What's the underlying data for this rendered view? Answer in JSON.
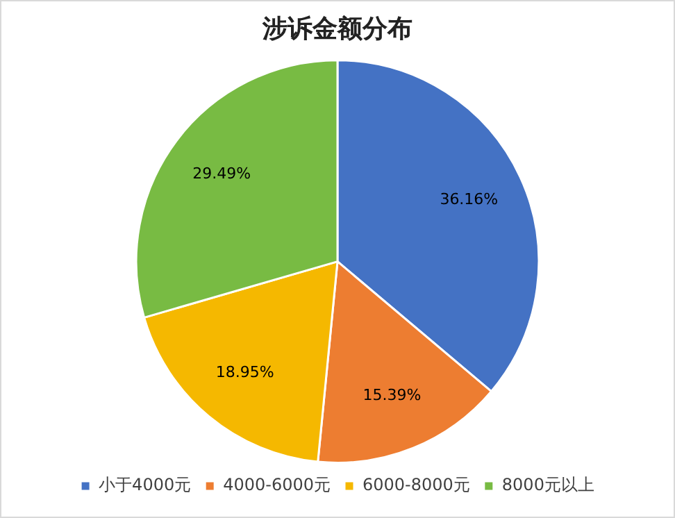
{
  "chart_data": {
    "type": "pie",
    "title": "涉诉金额分布",
    "categories": [
      "小于4000元",
      "4000-6000元",
      "6000-8000元",
      "8000元以上"
    ],
    "values": [
      36.16,
      15.39,
      18.95,
      29.49
    ],
    "colors": [
      "#4472c4",
      "#ed7d31",
      "#f5b800",
      "#78bb43"
    ],
    "value_labels": [
      "36.16%",
      "15.39%",
      "18.95%",
      "29.49%"
    ],
    "legend": "bottom"
  }
}
